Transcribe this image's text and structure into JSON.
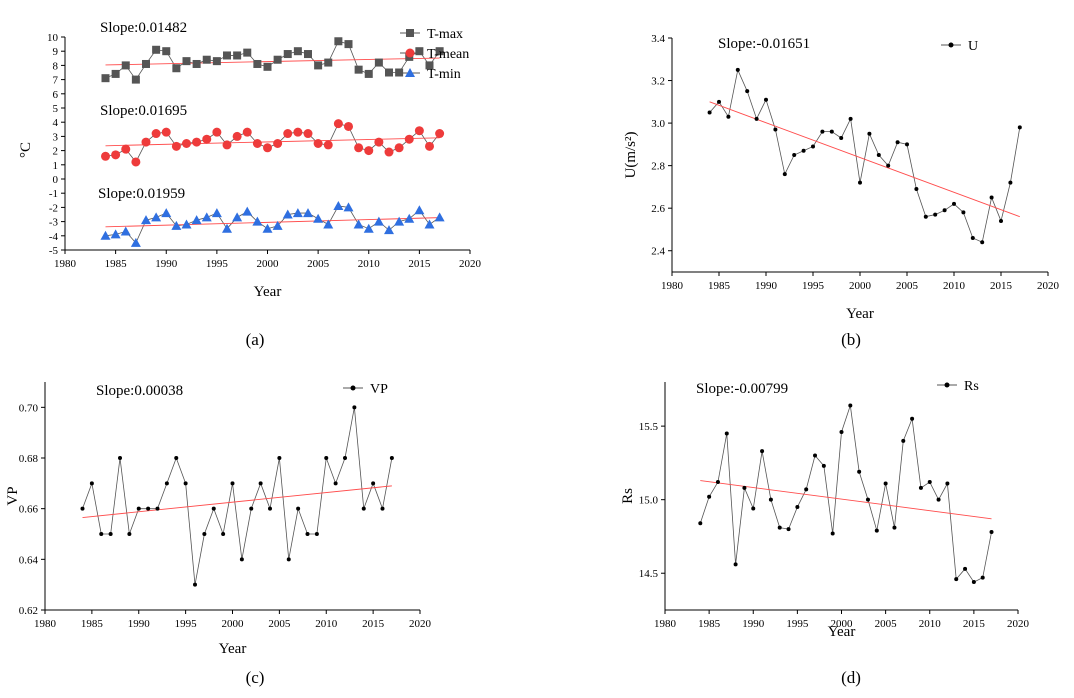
{
  "chart_data": [
    {
      "id": "a",
      "type": "scatter",
      "panel_label": "(a)",
      "xlabel": "Year",
      "ylabel": "°C",
      "xlim": [
        1980,
        2020
      ],
      "ylim": [
        -5,
        10
      ],
      "xticks": [
        "1980",
        "1985",
        "1990",
        "1995",
        "2000",
        "2005",
        "2010",
        "2015",
        "2020"
      ],
      "yticks": [
        "-5",
        "-4",
        "-3",
        "-2",
        "-1",
        "0",
        "1",
        "2",
        "3",
        "4",
        "5",
        "6",
        "7",
        "8",
        "9",
        "10"
      ],
      "x": [
        1984,
        1985,
        1986,
        1987,
        1988,
        1989,
        1990,
        1991,
        1992,
        1993,
        1994,
        1995,
        1996,
        1997,
        1998,
        1999,
        2000,
        2001,
        2002,
        2003,
        2004,
        2005,
        2006,
        2007,
        2008,
        2009,
        2010,
        2011,
        2012,
        2013,
        2014,
        2015,
        2016,
        2017
      ],
      "legend": {
        "position": "top-right"
      },
      "series": [
        {
          "name": "T-max",
          "marker": "square",
          "color": "#555555",
          "slope_text": "Slope:0.01482",
          "values": [
            7.1,
            7.4,
            8.0,
            7.0,
            8.1,
            9.1,
            9.0,
            7.8,
            8.3,
            8.1,
            8.4,
            8.3,
            8.7,
            8.7,
            8.9,
            8.1,
            7.9,
            8.4,
            8.8,
            9.0,
            8.8,
            8.0,
            8.2,
            9.7,
            9.5,
            7.7,
            7.4,
            8.2,
            7.5,
            7.5,
            8.6,
            9.0,
            8.0,
            9.0
          ],
          "trend": [
            8.03,
            8.52
          ]
        },
        {
          "name": "T-mean",
          "marker": "circle",
          "color": "#ee3b3b",
          "slope_text": "Slope:0.01695",
          "values": [
            1.6,
            1.7,
            2.1,
            1.2,
            2.6,
            3.2,
            3.3,
            2.3,
            2.5,
            2.6,
            2.8,
            3.3,
            2.4,
            3.0,
            3.3,
            2.5,
            2.2,
            2.5,
            3.2,
            3.3,
            3.2,
            2.5,
            2.4,
            3.9,
            3.7,
            2.2,
            2.0,
            2.6,
            1.9,
            2.2,
            2.8,
            3.4,
            2.3,
            3.2
          ],
          "trend": [
            2.34,
            2.9
          ]
        },
        {
          "name": "T-min",
          "marker": "triangle",
          "color": "#2f6fe0",
          "slope_text": "Slope:0.01959",
          "values": [
            -4.0,
            -3.9,
            -3.7,
            -4.5,
            -2.9,
            -2.7,
            -2.4,
            -3.3,
            -3.2,
            -2.9,
            -2.7,
            -2.4,
            -3.5,
            -2.7,
            -2.3,
            -3.0,
            -3.5,
            -3.3,
            -2.5,
            -2.4,
            -2.4,
            -2.8,
            -3.2,
            -1.9,
            -2.0,
            -3.2,
            -3.5,
            -3.0,
            -3.6,
            -3.0,
            -2.8,
            -2.2,
            -3.2,
            -2.7
          ],
          "trend": [
            -3.37,
            -2.72
          ]
        }
      ]
    },
    {
      "id": "b",
      "type": "line",
      "panel_label": "(b)",
      "xlabel": "Year",
      "ylabel": "U(m/s²)",
      "xlim": [
        1980,
        2020
      ],
      "ylim": [
        2.3,
        3.4
      ],
      "xticks": [
        "1980",
        "1985",
        "1990",
        "1995",
        "2000",
        "2005",
        "2010",
        "2015",
        "2020"
      ],
      "yticks": [
        "2.4",
        "2.6",
        "2.8",
        "3.0",
        "3.2",
        "3.4"
      ],
      "slope_text": "Slope:-0.01651",
      "legend": {
        "position": "top-right"
      },
      "x": [
        1984,
        1985,
        1986,
        1987,
        1988,
        1989,
        1990,
        1991,
        1992,
        1993,
        1994,
        1995,
        1996,
        1997,
        1998,
        1999,
        2000,
        2001,
        2002,
        2003,
        2004,
        2005,
        2006,
        2007,
        2008,
        2009,
        2010,
        2011,
        2012,
        2013,
        2014,
        2015,
        2016,
        2017
      ],
      "series": [
        {
          "name": "U",
          "color": "#555555",
          "values": [
            3.05,
            3.1,
            3.03,
            3.25,
            3.15,
            3.02,
            3.11,
            2.97,
            2.76,
            2.85,
            2.87,
            2.89,
            2.96,
            2.96,
            2.93,
            3.02,
            2.72,
            2.95,
            2.85,
            2.8,
            2.91,
            2.9,
            2.69,
            2.56,
            2.57,
            2.59,
            2.62,
            2.58,
            2.46,
            2.44,
            2.65,
            2.54,
            2.72,
            2.98
          ],
          "trend": [
            3.1,
            2.56
          ]
        }
      ]
    },
    {
      "id": "c",
      "type": "line",
      "panel_label": "(c)",
      "xlabel": "Year",
      "ylabel": "VP",
      "xlim": [
        1980,
        2020
      ],
      "ylim": [
        0.62,
        0.71
      ],
      "xticks": [
        "1980",
        "1985",
        "1990",
        "1995",
        "2000",
        "2005",
        "2010",
        "2015",
        "2020"
      ],
      "yticks": [
        "0.62",
        "0.64",
        "0.66",
        "0.68",
        "0.70"
      ],
      "slope_text": "Slope:0.00038",
      "legend": {
        "position": "top-right"
      },
      "x": [
        1984,
        1985,
        1986,
        1987,
        1988,
        1989,
        1990,
        1991,
        1992,
        1993,
        1994,
        1995,
        1996,
        1997,
        1998,
        1999,
        2000,
        2001,
        2002,
        2003,
        2004,
        2005,
        2006,
        2007,
        2008,
        2009,
        2010,
        2011,
        2012,
        2013,
        2014,
        2015,
        2016,
        2017
      ],
      "series": [
        {
          "name": "VP",
          "color": "#555555",
          "values": [
            0.66,
            0.67,
            0.65,
            0.65,
            0.68,
            0.65,
            0.66,
            0.66,
            0.66,
            0.67,
            0.68,
            0.67,
            0.63,
            0.65,
            0.66,
            0.65,
            0.67,
            0.64,
            0.66,
            0.67,
            0.66,
            0.68,
            0.64,
            0.66,
            0.65,
            0.65,
            0.68,
            0.67,
            0.68,
            0.7,
            0.66,
            0.67,
            0.66,
            0.68
          ],
          "trend": [
            0.6565,
            0.669
          ]
        }
      ]
    },
    {
      "id": "d",
      "type": "line",
      "panel_label": "(d)",
      "xlabel": "Year",
      "ylabel": "Rs",
      "xlim": [
        1980,
        2020
      ],
      "ylim": [
        14.25,
        15.8
      ],
      "xticks": [
        "1980",
        "1985",
        "1990",
        "1995",
        "2000",
        "2005",
        "2010",
        "2015",
        "2020"
      ],
      "yticks": [
        "14.5",
        "15.0",
        "15.5"
      ],
      "slope_text": "Slope:-0.00799",
      "legend": {
        "position": "top-right"
      },
      "x": [
        1984,
        1985,
        1986,
        1987,
        1988,
        1989,
        1990,
        1991,
        1992,
        1993,
        1994,
        1995,
        1996,
        1997,
        1998,
        1999,
        2000,
        2001,
        2002,
        2003,
        2004,
        2005,
        2006,
        2007,
        2008,
        2009,
        2010,
        2011,
        2012,
        2013,
        2014,
        2015,
        2016,
        2017
      ],
      "series": [
        {
          "name": "Rs",
          "color": "#555555",
          "values": [
            14.84,
            15.02,
            15.12,
            15.45,
            14.56,
            15.08,
            14.94,
            15.33,
            15.0,
            14.81,
            14.8,
            14.95,
            15.07,
            15.3,
            15.23,
            14.77,
            15.46,
            15.64,
            15.19,
            15.0,
            14.79,
            15.11,
            14.81,
            15.4,
            15.55,
            15.08,
            15.12,
            15.0,
            15.11,
            14.46,
            14.53,
            14.44,
            14.47,
            14.78
          ],
          "trend": [
            15.13,
            14.87
          ]
        }
      ]
    }
  ]
}
